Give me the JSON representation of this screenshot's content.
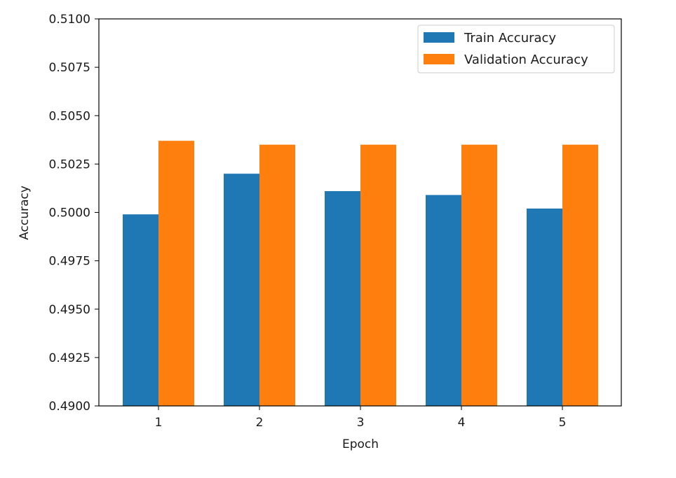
{
  "chart_data": {
    "type": "bar",
    "title": "",
    "xlabel": "Epoch",
    "ylabel": "Accuracy",
    "categories": [
      "1",
      "2",
      "3",
      "4",
      "5"
    ],
    "series": [
      {
        "name": "Train Accuracy",
        "color": "#1f77b4",
        "values": [
          0.4999,
          0.502,
          0.5011,
          0.5009,
          0.5002
        ]
      },
      {
        "name": "Validation Accuracy",
        "color": "#ff7f0e",
        "values": [
          0.5037,
          0.5035,
          0.5035,
          0.5035,
          0.5035
        ]
      }
    ],
    "ylim": [
      0.49,
      0.51
    ],
    "yticks": [
      "0.4900",
      "0.4925",
      "0.4950",
      "0.4975",
      "0.5000",
      "0.5025",
      "0.5050",
      "0.5075",
      "0.5100"
    ],
    "grid": false,
    "legend_position": "top-right"
  }
}
